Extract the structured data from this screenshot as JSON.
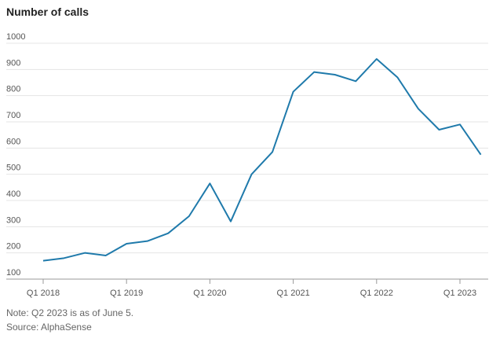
{
  "chart_data": {
    "type": "line",
    "title": "Number of calls",
    "categories": [
      "Q1 2018",
      null,
      null,
      null,
      "Q1 2019",
      null,
      null,
      null,
      "Q1 2020",
      null,
      null,
      null,
      "Q1 2021",
      null,
      null,
      null,
      "Q1 2022",
      null,
      null,
      null,
      "Q1 2023",
      null
    ],
    "values": [
      170,
      180,
      200,
      190,
      235,
      245,
      275,
      340,
      465,
      320,
      500,
      585,
      815,
      890,
      880,
      855,
      940,
      870,
      750,
      670,
      690,
      575
    ],
    "color": "#1f7aab",
    "ylim": [
      100,
      1000
    ],
    "yticks": [
      100,
      200,
      300,
      400,
      500,
      600,
      700,
      800,
      900,
      1000
    ],
    "grid": true,
    "note": "Note: Q2 2023 is as of June 5.",
    "source": "Source: AlphaSense"
  }
}
